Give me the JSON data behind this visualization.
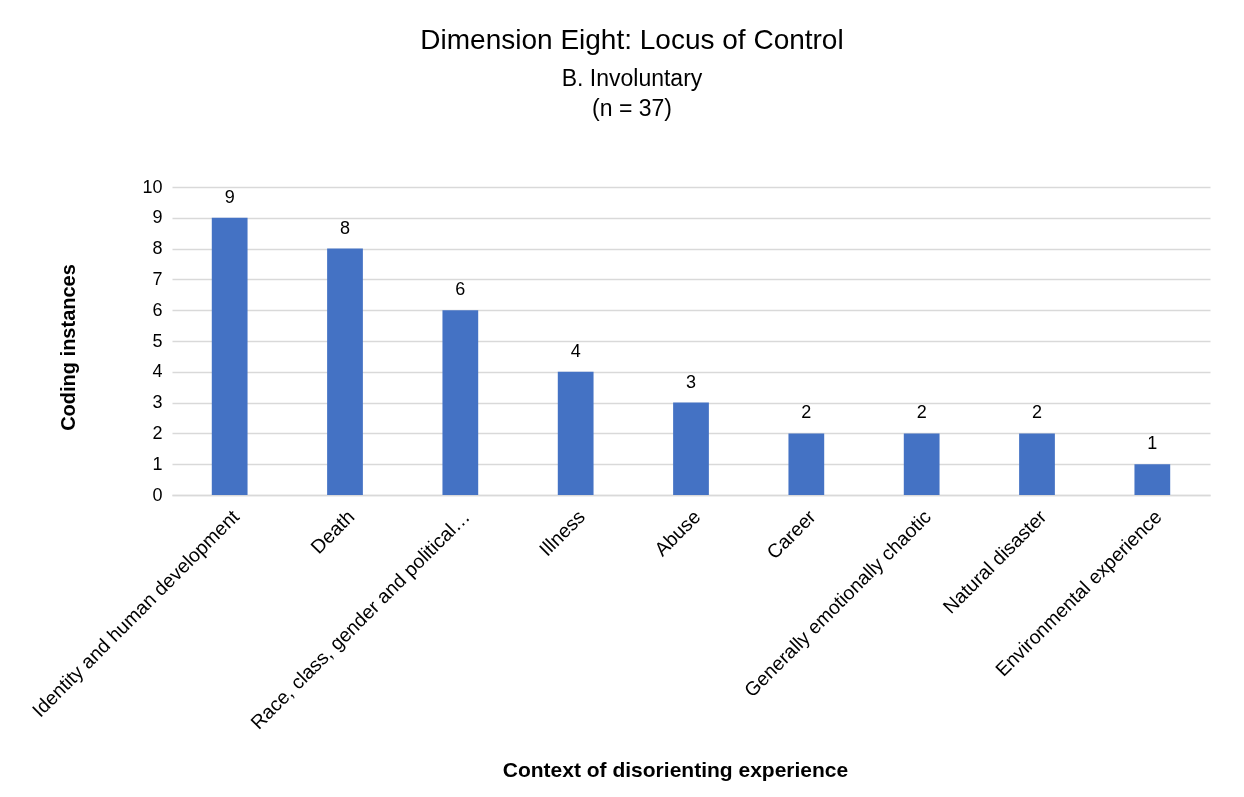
{
  "chart_data": {
    "type": "bar",
    "title": "Dimension Eight: Locus of Control",
    "subtitle": "B. Involuntary\n(n = 37)",
    "xlabel": "Context of disorienting experience",
    "ylabel": "Coding instances",
    "categories": [
      "Identity and human development",
      "Death",
      "Race, class, gender and political…",
      "Illness",
      "Abuse",
      "Career",
      "Generally emotionally chaotic",
      "Natural disaster",
      "Environmental experience"
    ],
    "values": [
      9,
      8,
      6,
      4,
      3,
      2,
      2,
      2,
      1
    ],
    "color": "#4472c4",
    "ylim": [
      0,
      10
    ],
    "yticks": [
      0,
      1,
      2,
      3,
      4,
      5,
      6,
      7,
      8,
      9,
      10
    ],
    "grid": "y",
    "data_labels": true
  }
}
